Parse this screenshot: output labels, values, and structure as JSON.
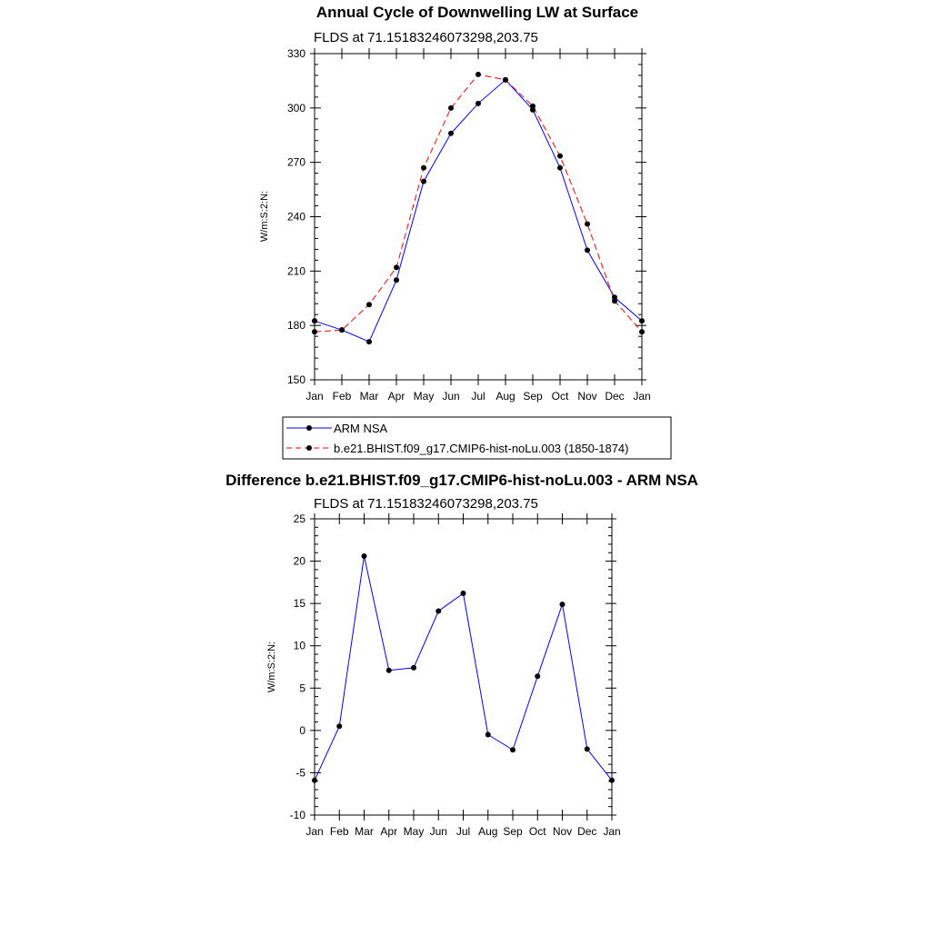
{
  "chart_data": [
    {
      "type": "line",
      "title": "Annual Cycle of Downwelling LW at Surface",
      "subtitle": "FLDS at 71.15183246073298,203.75",
      "ylabel": "W/m:S:2:N:",
      "xlabel": "",
      "ylim": [
        150,
        330
      ],
      "yticks": [
        150,
        180,
        210,
        240,
        270,
        300,
        330
      ],
      "categories": [
        "Jan",
        "Feb",
        "Mar",
        "Apr",
        "May",
        "Jun",
        "Jul",
        "Aug",
        "Sep",
        "Oct",
        "Nov",
        "Dec",
        "Jan"
      ],
      "series": [
        {
          "name": "ARM NSA",
          "color": "#0000ff",
          "dash": "solid",
          "values": [
            182.5,
            177.5,
            171,
            205,
            259.5,
            286,
            302.5,
            315.5,
            299,
            267,
            221.5,
            195.5,
            182.5
          ]
        },
        {
          "name": "b.e21.BHIST.f09_g17.CMIP6-hist-noLu.003 (1850-1874)",
          "color": "#ff0000",
          "dash": "dashed",
          "values": [
            176.5,
            177.5,
            191.5,
            212,
            267,
            300,
            318.5,
            315.5,
            301,
            273.5,
            236,
            193.5,
            176.5
          ]
        }
      ],
      "legend": "bottom"
    },
    {
      "type": "line",
      "title": "Difference b.e21.BHIST.f09_g17.CMIP6-hist-noLu.003 - ARM NSA",
      "subtitle": "FLDS at 71.15183246073298,203.75",
      "ylabel": "W/m:S:2:N:",
      "xlabel": "",
      "ylim": [
        -10,
        25
      ],
      "yticks": [
        -10,
        -5,
        0,
        5,
        10,
        15,
        20,
        25
      ],
      "categories": [
        "Jan",
        "Feb",
        "Mar",
        "Apr",
        "May",
        "Jun",
        "Jul",
        "Aug",
        "Sep",
        "Oct",
        "Nov",
        "Dec",
        "Jan"
      ],
      "series": [
        {
          "name": "Difference",
          "color": "#0000ff",
          "dash": "solid",
          "values": [
            -5.9,
            0.5,
            20.6,
            7.1,
            7.4,
            14.1,
            16.2,
            -0.5,
            -2.3,
            6.4,
            14.9,
            -2.2,
            -5.9
          ]
        }
      ]
    }
  ]
}
